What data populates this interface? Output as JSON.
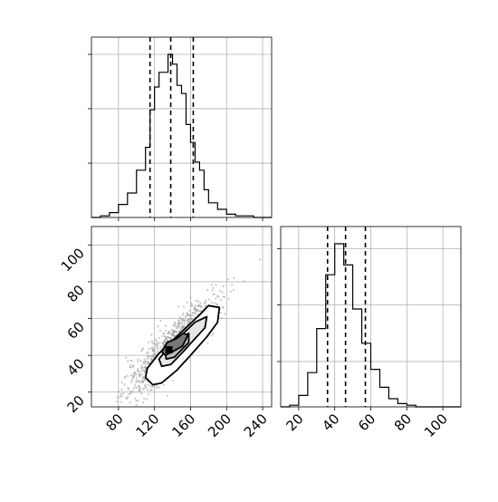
{
  "chart_data": [
    {
      "type": "histogram",
      "panel": "top",
      "param": "x",
      "xlim": [
        50,
        250
      ],
      "ylim": [
        0,
        1
      ],
      "bin_edges": [
        50,
        60,
        70,
        80,
        90,
        100,
        110,
        115,
        120,
        125,
        130,
        135,
        140,
        145,
        150,
        155,
        160,
        165,
        170,
        175,
        180,
        190,
        200,
        210,
        220,
        230,
        240,
        250
      ],
      "counts": [
        0.0,
        0.01,
        0.03,
        0.08,
        0.15,
        0.29,
        0.43,
        0.66,
        0.8,
        0.89,
        0.89,
        1.0,
        0.94,
        0.81,
        0.76,
        0.57,
        0.46,
        0.34,
        0.29,
        0.17,
        0.09,
        0.05,
        0.02,
        0.01,
        0.01,
        0.0,
        0.0
      ],
      "quantiles": [
        115,
        138,
        163
      ],
      "grid": true
    },
    {
      "type": "scatter",
      "panel": "lower-left",
      "xlabel": "",
      "ylabel": "",
      "xlim": [
        50,
        250
      ],
      "ylim": [
        12,
        110
      ],
      "xticks": [
        "80",
        "120",
        "160",
        "200",
        "240"
      ],
      "yticks": [
        "20",
        "40",
        "60",
        "80",
        "100"
      ],
      "point_cloud": {
        "center": [
          140,
          45
        ],
        "slope": 0.46,
        "spread_x": 25,
        "spread_y": 6
      },
      "contour_levels": [
        {
          "fill": "#ffffff",
          "points": [
            [
              118,
              24
            ],
            [
              110,
              28
            ],
            [
              112,
              33
            ],
            [
              125,
              41
            ],
            [
              140,
              48
            ],
            [
              155,
              55
            ],
            [
              170,
              62
            ],
            [
              180,
              67
            ],
            [
              192,
              66
            ],
            [
              190,
              58
            ],
            [
              178,
              50
            ],
            [
              160,
              40
            ],
            [
              145,
              32
            ],
            [
              128,
              25
            ]
          ]
        },
        {
          "fill": "#e6e6e6",
          "points": [
            [
              128,
              34
            ],
            [
              125,
              38
            ],
            [
              135,
              44
            ],
            [
              150,
              51
            ],
            [
              165,
              58
            ],
            [
              178,
              61
            ],
            [
              176,
              55
            ],
            [
              163,
              48
            ],
            [
              150,
              41
            ],
            [
              138,
              35
            ]
          ]
        },
        {
          "fill": "#bdbdbd",
          "points": [
            [
              133,
              38
            ],
            [
              132,
              41
            ],
            [
              140,
              46
            ],
            [
              152,
              50
            ],
            [
              158,
              52
            ],
            [
              158,
              47
            ],
            [
              150,
              43
            ],
            [
              142,
              39
            ]
          ]
        },
        {
          "fill": "#787878",
          "points": [
            [
              128,
              42
            ],
            [
              134,
              47
            ],
            [
              144,
              49
            ],
            [
              152,
              52
            ],
            [
              157,
              51
            ],
            [
              151,
              45
            ],
            [
              140,
              42
            ],
            [
              132,
              40
            ]
          ]
        }
      ],
      "core": {
        "x": 136,
        "y": 43,
        "fill": "#000000"
      }
    },
    {
      "type": "histogram",
      "panel": "lower-right",
      "param": "y",
      "xlim": [
        10,
        110
      ],
      "ylim": [
        0,
        1
      ],
      "xticks": [
        "20",
        "40",
        "60",
        "80",
        "100"
      ],
      "bin_edges": [
        10,
        15,
        20,
        25,
        30,
        35,
        40,
        45,
        50,
        55,
        60,
        65,
        70,
        75,
        80,
        85,
        90,
        95,
        100,
        105,
        110
      ],
      "counts": [
        0.0,
        0.01,
        0.07,
        0.21,
        0.48,
        0.81,
        1.0,
        0.87,
        0.6,
        0.39,
        0.23,
        0.12,
        0.05,
        0.02,
        0.01,
        0.0,
        0.0,
        0.0,
        0.0,
        0.0
      ],
      "quantiles": [
        36,
        46,
        57
      ],
      "grid": true
    }
  ]
}
